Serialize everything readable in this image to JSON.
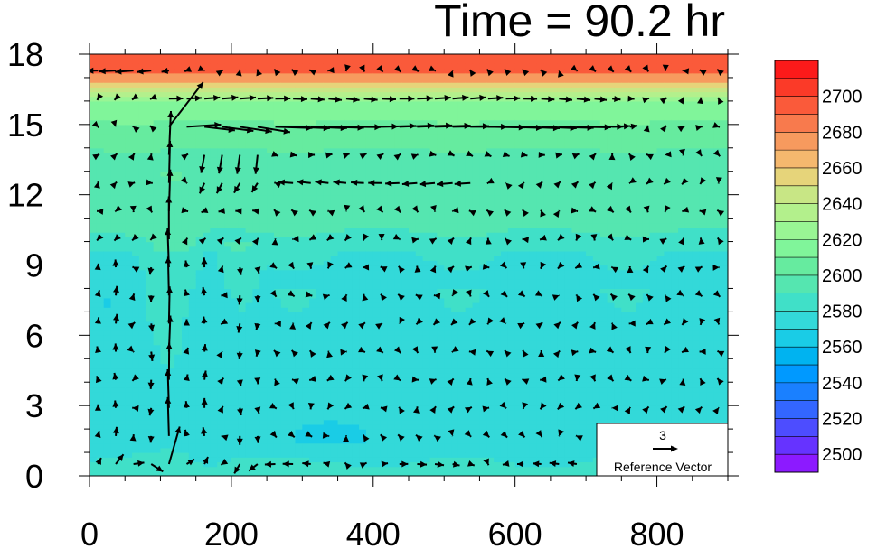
{
  "chart_data": {
    "type": "heatmap",
    "title": "Time = 90.2 hr",
    "x_ticks": [
      0,
      200,
      400,
      600,
      800
    ],
    "y_ticks": [
      0,
      3,
      6,
      9,
      12,
      15,
      18
    ],
    "xlim": [
      0,
      900
    ],
    "ylim": [
      0,
      18
    ],
    "colorbar": {
      "min": 2490,
      "max": 2710,
      "step": 10,
      "labels": [
        2500,
        2520,
        2540,
        2560,
        2580,
        2600,
        2620,
        2640,
        2660,
        2680,
        2700
      ],
      "colors": [
        "#8c1aff",
        "#6633ff",
        "#4d4dff",
        "#3366ff",
        "#1a80ff",
        "#0099ff",
        "#00b3f0",
        "#1acce6",
        "#33d9d9",
        "#40e0c8",
        "#55e6b0",
        "#66eb9f",
        "#80f59a",
        "#99f594",
        "#b3f08c",
        "#c8e685",
        "#e6d47a",
        "#f5b86e",
        "#f79a5e",
        "#f87a4d",
        "#fa5a3a",
        "#fb3a28",
        "#fc1a1a"
      ]
    },
    "reference_vector": {
      "magnitude": "3",
      "label": "Reference Vector"
    },
    "field_description": "Contoured scalar field over x (0-900) and height (0-18) with overlaid wind vectors; very warm layer (2690-2710) near top at 17-18, values ~2600-2620 in upper region, ~2580-2600 in middle, cooler pockets ~2570 near x=0-50 at 6-8 and x=250-350 near 1; strong outflow vectors near height 14-16 from x=100 to x=750."
  }
}
